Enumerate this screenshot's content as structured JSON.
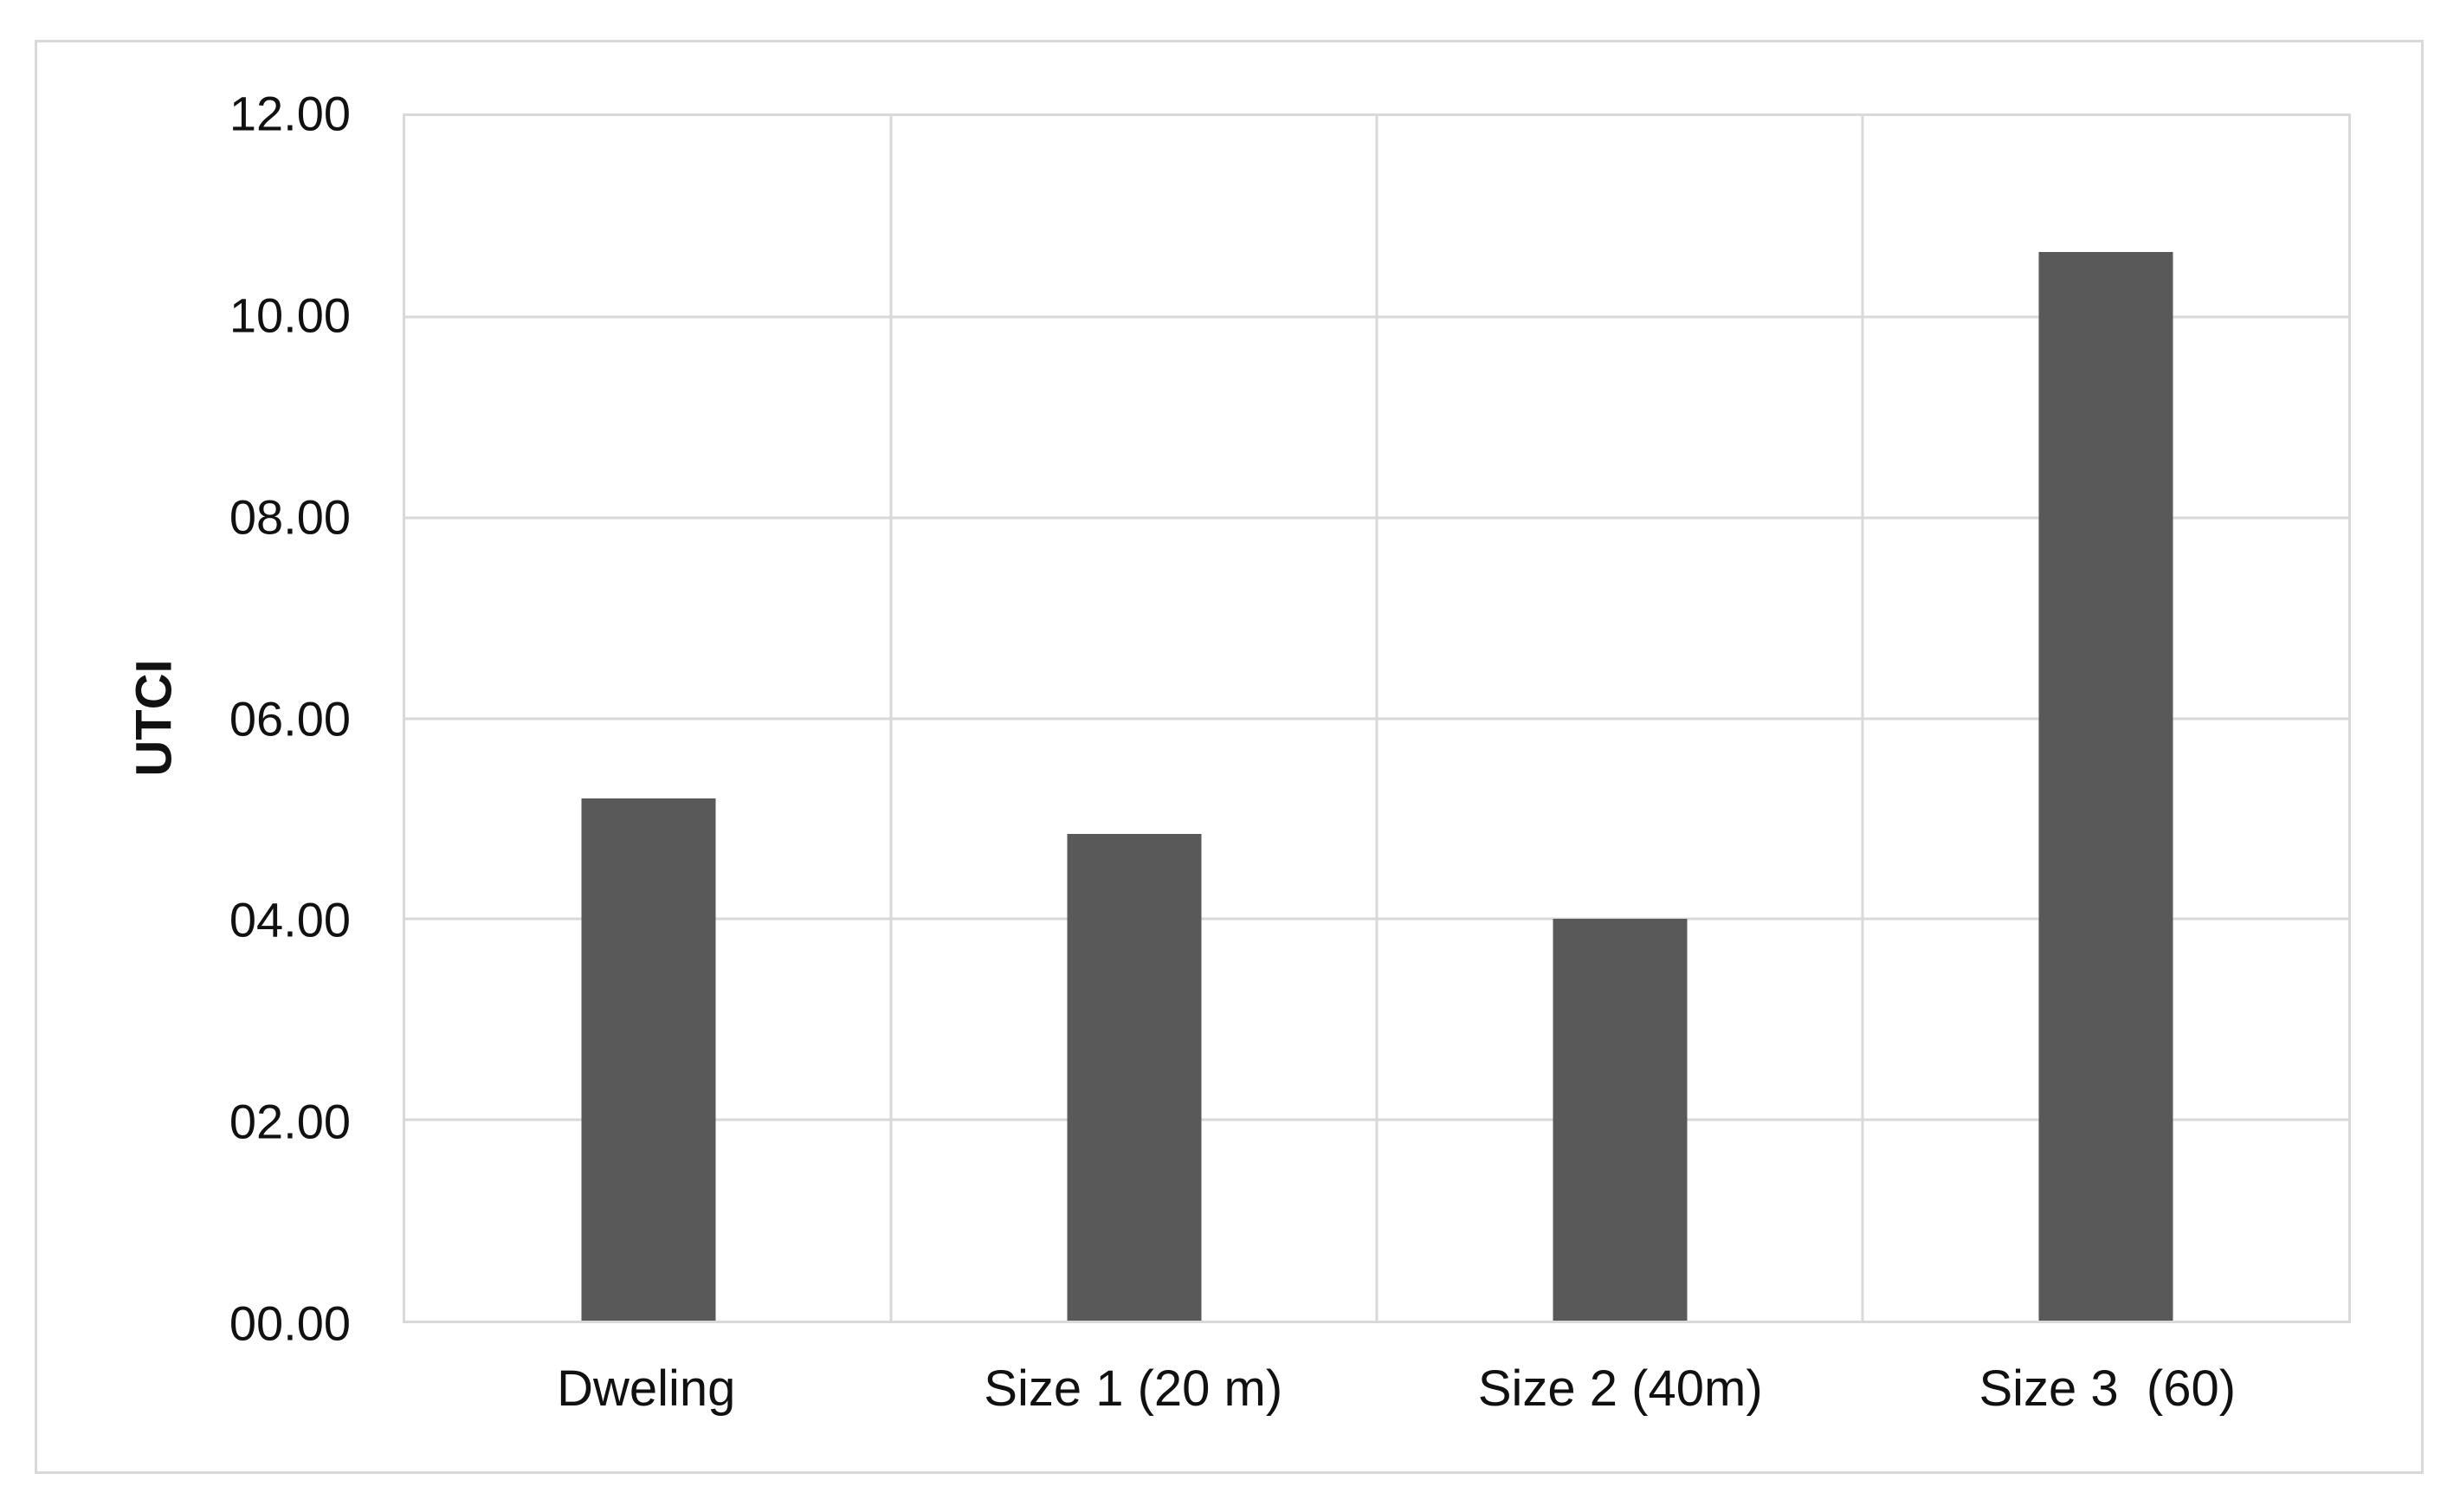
{
  "figure": {
    "background_color": "#ffffff",
    "border_color": "#d9d9d9"
  },
  "chart_data": {
    "type": "bar",
    "title": "",
    "xlabel": "",
    "ylabel": "UTCI",
    "categories": [
      "Dweling",
      "Size 1 (20 m)",
      "Size 2 (40m)",
      "Size 3  (60)"
    ],
    "values": [
      5.2,
      4.85,
      4.0,
      10.65
    ],
    "ylim": [
      0,
      12
    ],
    "ytick_step": 2,
    "ytick_labels": [
      "00.00",
      "02.00",
      "04.00",
      "06.00",
      "08.00",
      "10.00",
      "12.00"
    ],
    "grid": true,
    "legend": false,
    "bar_color": "#595959",
    "gridline_color": "#d9d9d9",
    "text_color": "#111111"
  }
}
